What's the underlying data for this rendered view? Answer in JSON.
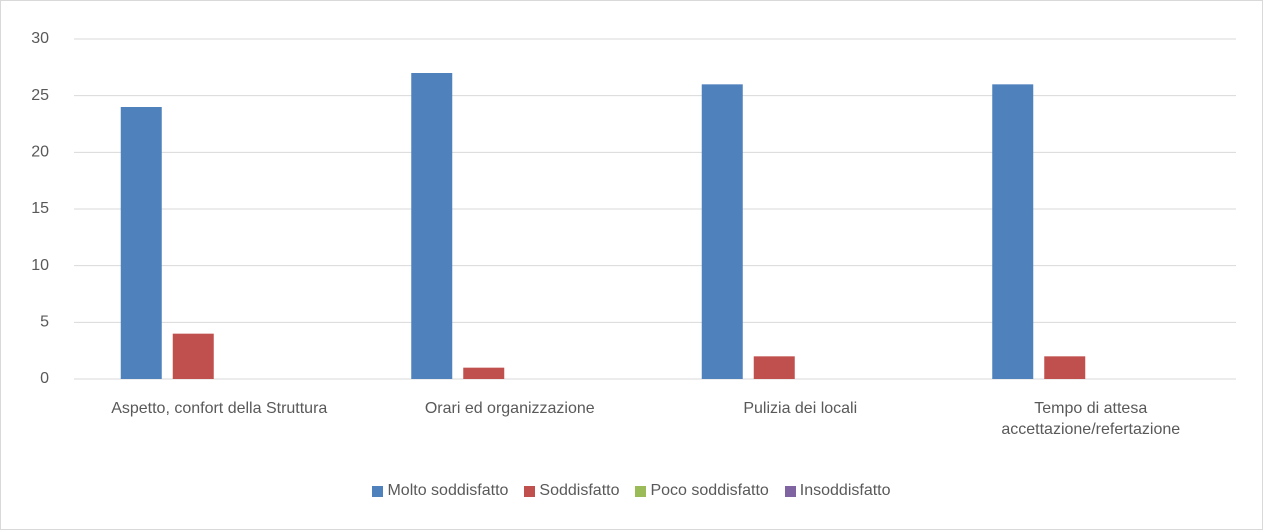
{
  "chart_data": {
    "type": "bar",
    "categories": [
      "Aspetto, confort della Struttura",
      "Orari ed organizzazione",
      "Pulizia dei locali",
      "Tempo di attesa accettazione/refertazione"
    ],
    "series": [
      {
        "name": "Molto soddisfatto",
        "color": "#4f81bd",
        "values": [
          24,
          27,
          26,
          26
        ]
      },
      {
        "name": "Soddisfatto",
        "color": "#c0504d",
        "values": [
          4,
          1,
          2,
          2
        ]
      },
      {
        "name": "Poco soddisfatto",
        "color": "#9bbb59",
        "values": [
          0,
          0,
          0,
          0
        ]
      },
      {
        "name": "Insoddisfatto",
        "color": "#8064a2",
        "values": [
          0,
          0,
          0,
          0
        ]
      }
    ],
    "ylim": [
      0,
      30
    ],
    "yticks": [
      0,
      5,
      10,
      15,
      20,
      25,
      30
    ],
    "grid": true,
    "legend": "bottom"
  }
}
